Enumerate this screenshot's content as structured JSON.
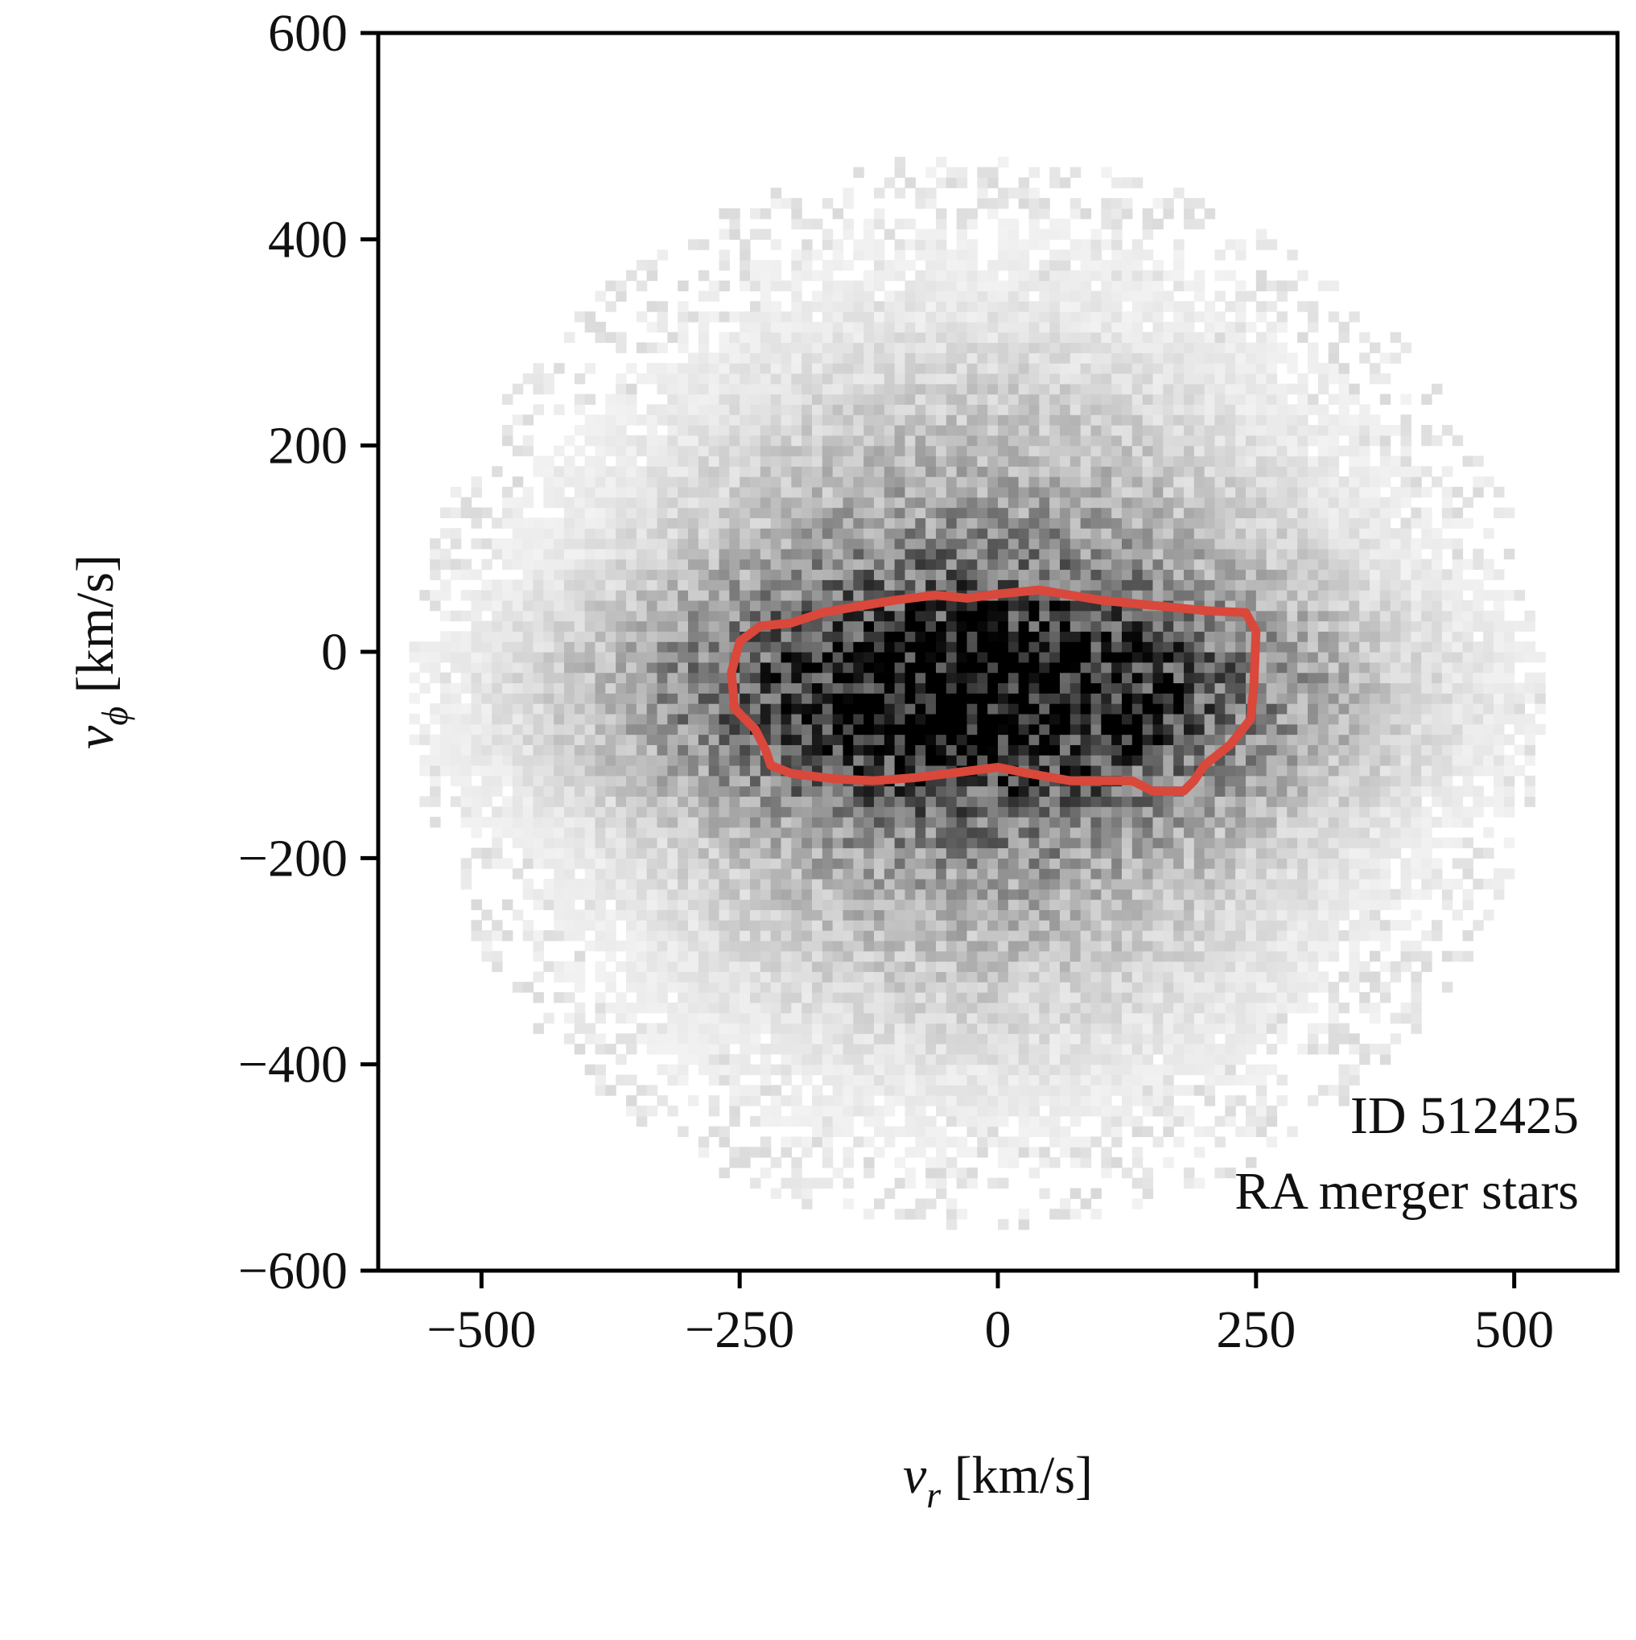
{
  "chart_data": {
    "type": "heatmap",
    "description_free": true,
    "x": {
      "label_main": "v",
      "label_sub": "r",
      "label_unit": " [km/s]",
      "range": [
        -600,
        600
      ],
      "ticks": [
        -500,
        -250,
        0,
        250,
        500
      ],
      "tick_labels": [
        "−500",
        "−250",
        "0",
        "250",
        "500"
      ]
    },
    "y": {
      "label_main": "v",
      "label_sub": "ϕ",
      "label_unit": " [km/s]",
      "range": [
        -600,
        600
      ],
      "ticks": [
        -600,
        -400,
        -200,
        0,
        200,
        400,
        600
      ],
      "tick_labels": [
        "−600",
        "−400",
        "−200",
        "0",
        "200",
        "400",
        "600"
      ]
    },
    "histogram": {
      "bin_size": 10,
      "colormap": "greys",
      "peak_center": [
        -20,
        -40
      ],
      "spread": [
        200,
        190
      ]
    },
    "contour": {
      "color": "#d9483b",
      "points": [
        [
          -250,
          10
        ],
        [
          -230,
          25
        ],
        [
          -200,
          28
        ],
        [
          -170,
          38
        ],
        [
          -130,
          45
        ],
        [
          -100,
          50
        ],
        [
          -60,
          55
        ],
        [
          -30,
          52
        ],
        [
          0,
          56
        ],
        [
          40,
          60
        ],
        [
          70,
          55
        ],
        [
          100,
          50
        ],
        [
          150,
          45
        ],
        [
          200,
          40
        ],
        [
          240,
          38
        ],
        [
          250,
          20
        ],
        [
          248,
          -30
        ],
        [
          245,
          -65
        ],
        [
          225,
          -90
        ],
        [
          200,
          -110
        ],
        [
          190,
          -125
        ],
        [
          180,
          -135
        ],
        [
          150,
          -135
        ],
        [
          130,
          -125
        ],
        [
          100,
          -125
        ],
        [
          70,
          -125
        ],
        [
          30,
          -118
        ],
        [
          0,
          -112
        ],
        [
          -40,
          -117
        ],
        [
          -80,
          -122
        ],
        [
          -120,
          -125
        ],
        [
          -160,
          -123
        ],
        [
          -200,
          -118
        ],
        [
          -220,
          -110
        ],
        [
          -225,
          -95
        ],
        [
          -235,
          -75
        ],
        [
          -255,
          -55
        ],
        [
          -258,
          -20
        ]
      ]
    },
    "annotations": [
      "ID 512425",
      "RA merger stars"
    ]
  }
}
